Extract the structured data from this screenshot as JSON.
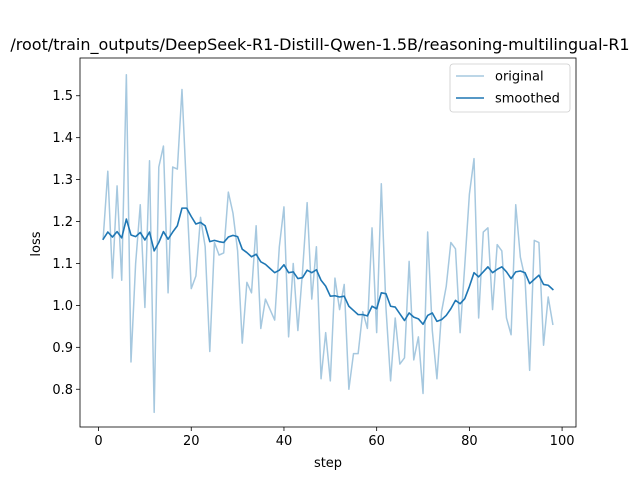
{
  "chart_data": {
    "type": "line",
    "title": "/root/train_outputs/DeepSeek-R1-Distill-Qwen-1.5B/reasoning-multilingual-R1",
    "xlabel": "step",
    "ylabel": "loss",
    "xlim": [
      -4,
      103
    ],
    "ylim": [
      0.71,
      1.59
    ],
    "xticks": [
      0,
      20,
      40,
      60,
      80,
      100
    ],
    "yticks": [
      0.8,
      0.9,
      1.0,
      1.1,
      1.2,
      1.3,
      1.4,
      1.5
    ],
    "xtick_labels": [
      "0",
      "20",
      "40",
      "60",
      "80",
      "100"
    ],
    "ytick_labels": [
      "0.8",
      "0.9",
      "1.0",
      "1.1",
      "1.2",
      "1.3",
      "1.4",
      "1.5"
    ],
    "legend_position": "top-right",
    "series": [
      {
        "name": "original",
        "color": "#a6c8df",
        "x": [
          1,
          2,
          3,
          4,
          5,
          6,
          7,
          8,
          9,
          10,
          11,
          12,
          13,
          14,
          15,
          16,
          17,
          18,
          19,
          20,
          21,
          22,
          23,
          24,
          25,
          26,
          27,
          28,
          29,
          30,
          31,
          32,
          33,
          34,
          35,
          36,
          37,
          38,
          39,
          40,
          41,
          42,
          43,
          44,
          45,
          46,
          47,
          48,
          49,
          50,
          51,
          52,
          53,
          54,
          55,
          56,
          57,
          58,
          59,
          60,
          61,
          62,
          63,
          64,
          65,
          66,
          67,
          68,
          69,
          70,
          71,
          72,
          73,
          74,
          75,
          76,
          77,
          78,
          79,
          80,
          81,
          82,
          83,
          84,
          85,
          86,
          87,
          88,
          89,
          90,
          91,
          92,
          93,
          94,
          95,
          96,
          97,
          98
        ],
        "values": [
          1.16,
          1.32,
          1.065,
          1.285,
          1.06,
          1.55,
          0.865,
          1.1,
          1.24,
          0.995,
          1.345,
          0.745,
          1.33,
          1.38,
          1.03,
          1.33,
          1.325,
          1.515,
          1.27,
          1.04,
          1.07,
          1.21,
          1.14,
          0.89,
          1.15,
          1.12,
          1.125,
          1.27,
          1.22,
          1.13,
          0.91,
          1.055,
          1.03,
          1.19,
          0.945,
          1.015,
          0.99,
          0.965,
          1.14,
          1.235,
          0.925,
          1.1,
          0.94,
          1.08,
          1.245,
          1.015,
          1.14,
          0.825,
          0.935,
          0.82,
          1.065,
          0.99,
          1.05,
          0.8,
          0.885,
          0.885,
          0.985,
          0.945,
          1.185,
          0.935,
          1.29,
          0.995,
          0.82,
          0.97,
          0.86,
          0.875,
          1.105,
          0.87,
          0.925,
          0.79,
          1.175,
          0.94,
          0.825,
          0.985,
          1.045,
          1.15,
          1.135,
          0.935,
          1.095,
          1.265,
          1.35,
          0.97,
          1.175,
          1.185,
          0.99,
          1.145,
          1.13,
          0.97,
          0.93,
          1.24,
          1.115,
          1.065,
          0.845,
          1.155,
          1.15,
          0.905,
          1.02,
          0.955
        ]
      },
      {
        "name": "smoothed",
        "color": "#1f77b4",
        "x": [
          1,
          2,
          3,
          4,
          5,
          6,
          7,
          8,
          9,
          10,
          11,
          12,
          13,
          14,
          15,
          16,
          17,
          18,
          19,
          20,
          21,
          22,
          23,
          24,
          25,
          26,
          27,
          28,
          29,
          30,
          31,
          32,
          33,
          34,
          35,
          36,
          37,
          38,
          39,
          40,
          41,
          42,
          43,
          44,
          45,
          46,
          47,
          48,
          49,
          50,
          51,
          52,
          53,
          54,
          55,
          56,
          57,
          58,
          59,
          60,
          61,
          62,
          63,
          64,
          65,
          66,
          67,
          68,
          69,
          70,
          71,
          72,
          73,
          74,
          75,
          76,
          77,
          78,
          79,
          80,
          81,
          82,
          83,
          84,
          85,
          86,
          87,
          88,
          89,
          90,
          91,
          92,
          93,
          94,
          95,
          96,
          97,
          98
        ],
        "values": [
          1.158,
          1.175,
          1.163,
          1.176,
          1.161,
          1.206,
          1.168,
          1.164,
          1.174,
          1.156,
          1.175,
          1.13,
          1.15,
          1.176,
          1.158,
          1.175,
          1.19,
          1.232,
          1.232,
          1.212,
          1.194,
          1.198,
          1.19,
          1.152,
          1.155,
          1.152,
          1.15,
          1.163,
          1.167,
          1.164,
          1.134,
          1.126,
          1.116,
          1.122,
          1.104,
          1.098,
          1.088,
          1.078,
          1.084,
          1.097,
          1.078,
          1.08,
          1.064,
          1.066,
          1.084,
          1.078,
          1.085,
          1.06,
          1.046,
          1.022,
          1.023,
          1.02,
          1.022,
          0.998,
          0.988,
          0.978,
          0.978,
          0.975,
          0.998,
          0.992,
          1.03,
          1.028,
          0.998,
          0.996,
          0.98,
          0.964,
          0.982,
          0.972,
          0.968,
          0.955,
          0.976,
          0.982,
          0.962,
          0.966,
          0.976,
          0.992,
          1.012,
          1.004,
          1.016,
          1.045,
          1.078,
          1.068,
          1.08,
          1.092,
          1.078,
          1.086,
          1.092,
          1.08,
          1.064,
          1.08,
          1.082,
          1.078,
          1.052,
          1.062,
          1.072,
          1.05,
          1.048,
          1.038
        ]
      }
    ]
  }
}
